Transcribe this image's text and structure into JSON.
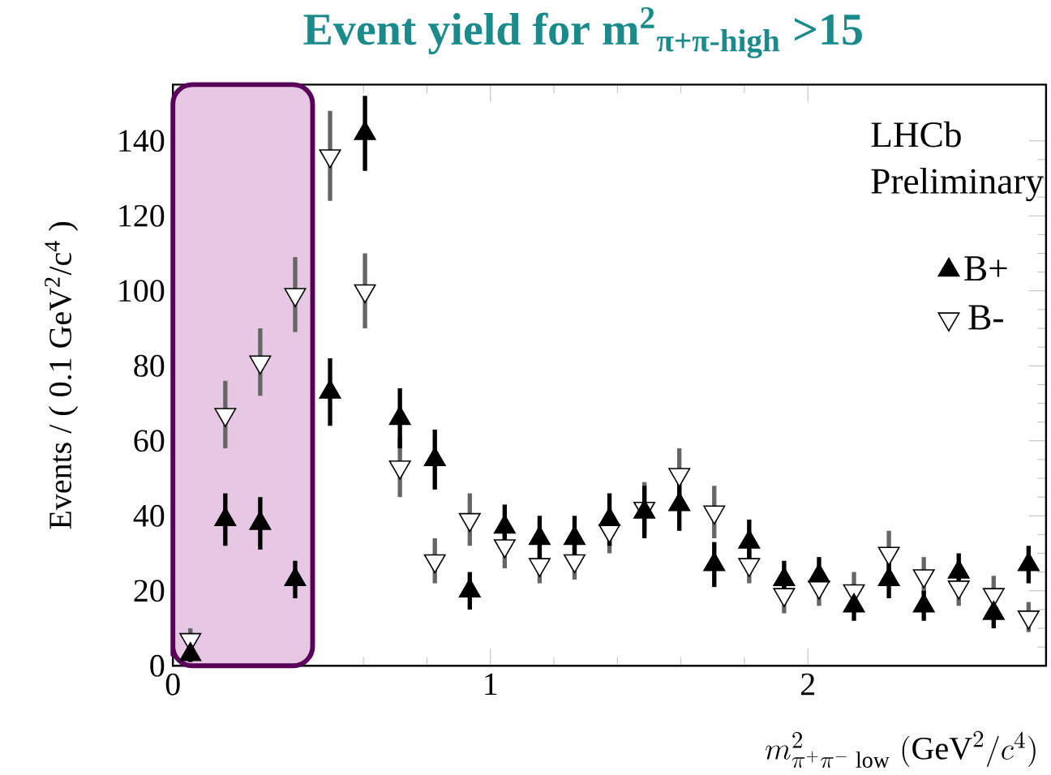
{
  "chart_data": {
    "type": "scatter",
    "title": "Event yield for m$^{2}$$_{π+π-high}$ >15",
    "xlabel": "m^{2}_{\\pi^{+}\\pi^{-}\\;\\mathrm{low}}\\;(\\mathrm{GeV}^{2}/c^{4})",
    "ylabel": "Events / ( 0.1 GeV$^{2}$/c$^{4}$ )",
    "annotations": [
      "LHCb",
      "Preliminary"
    ],
    "x": [
      0.055,
      0.165,
      0.275,
      0.385,
      0.495,
      0.605,
      0.715,
      0.825,
      0.935,
      1.045,
      1.155,
      1.265,
      1.375,
      1.485,
      1.595,
      1.705,
      1.815,
      1.925,
      2.035,
      2.145,
      2.255,
      2.365,
      2.475,
      2.585,
      2.695
    ],
    "series": [
      {
        "name": "B+",
        "color": "#000000",
        "marker": "triangle",
        "values": [
          3,
          39,
          38,
          23,
          73,
          142,
          66,
          55,
          20,
          37,
          34,
          34,
          39,
          41,
          43,
          27,
          33,
          23,
          24,
          16,
          23,
          16,
          25,
          14,
          27
        ],
        "errors": [
          2,
          7,
          7,
          5,
          9,
          10,
          8,
          8,
          5,
          6,
          6,
          6,
          7,
          7,
          7,
          6,
          6,
          5,
          5,
          4,
          5,
          4,
          5,
          4,
          5
        ]
      },
      {
        "name": "B-",
        "color": "#ffffff",
        "marker": "triangle",
        "values": [
          7,
          67,
          81,
          99,
          136,
          100,
          53,
          28,
          39,
          32,
          27,
          28,
          36,
          42,
          51,
          41,
          27,
          19,
          21,
          20,
          30,
          24,
          21,
          19,
          13
        ],
        "errors": [
          3,
          9,
          9,
          10,
          12,
          10,
          8,
          6,
          7,
          6,
          5,
          5,
          6,
          7,
          7,
          7,
          5,
          5,
          5,
          5,
          6,
          5,
          5,
          5,
          4
        ]
      }
    ],
    "xlim": [
      0,
      2.75
    ],
    "xticks": [
      0,
      1,
      2
    ],
    "ylim": [
      0,
      155
    ],
    "yticks": [
      0,
      20,
      40,
      60,
      80,
      100,
      120,
      140
    ],
    "bands": [
      {
        "axis": "x",
        "from": 0,
        "to": 0.44,
        "color": "#e6c8e4"
      }
    ],
    "legend": "top right",
    "grid": false
  }
}
